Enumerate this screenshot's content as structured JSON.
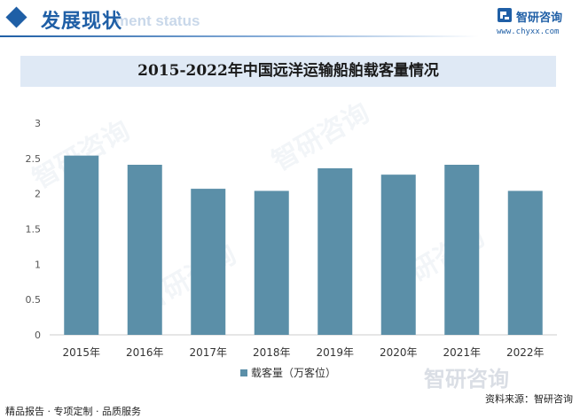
{
  "header": {
    "title": "发展现状",
    "subtitle": "ment status",
    "brand_name": "智研咨询",
    "brand_url": "www.chyxx.com"
  },
  "footer": {
    "left": "精品报告 · 专项定制 · 品质服务",
    "right": "资料来源：智研咨询"
  },
  "watermark": "智研咨询",
  "colors": {
    "bar": "#5b8fa8",
    "accent": "#1f5fa6",
    "title_bg": "#dfe9f5"
  },
  "chart_data": {
    "type": "bar",
    "title": "2015-2022年中国远洋运输船舶载客量情况",
    "categories": [
      "2015年",
      "2016年",
      "2017年",
      "2018年",
      "2019年",
      "2020年",
      "2021年",
      "2022年"
    ],
    "series": [
      {
        "name": "载客量（万客位）",
        "values": [
          2.54,
          2.41,
          2.07,
          2.04,
          2.36,
          2.27,
          2.41,
          2.04
        ]
      }
    ],
    "ylim": [
      0,
      3
    ],
    "yticks": [
      0,
      0.5,
      1,
      1.5,
      2,
      2.5,
      3
    ],
    "ytick_labels": [
      "0",
      "0.5",
      "1",
      "1.5",
      "2",
      "2.5",
      "3"
    ],
    "grid": false,
    "legend": "bottom"
  }
}
